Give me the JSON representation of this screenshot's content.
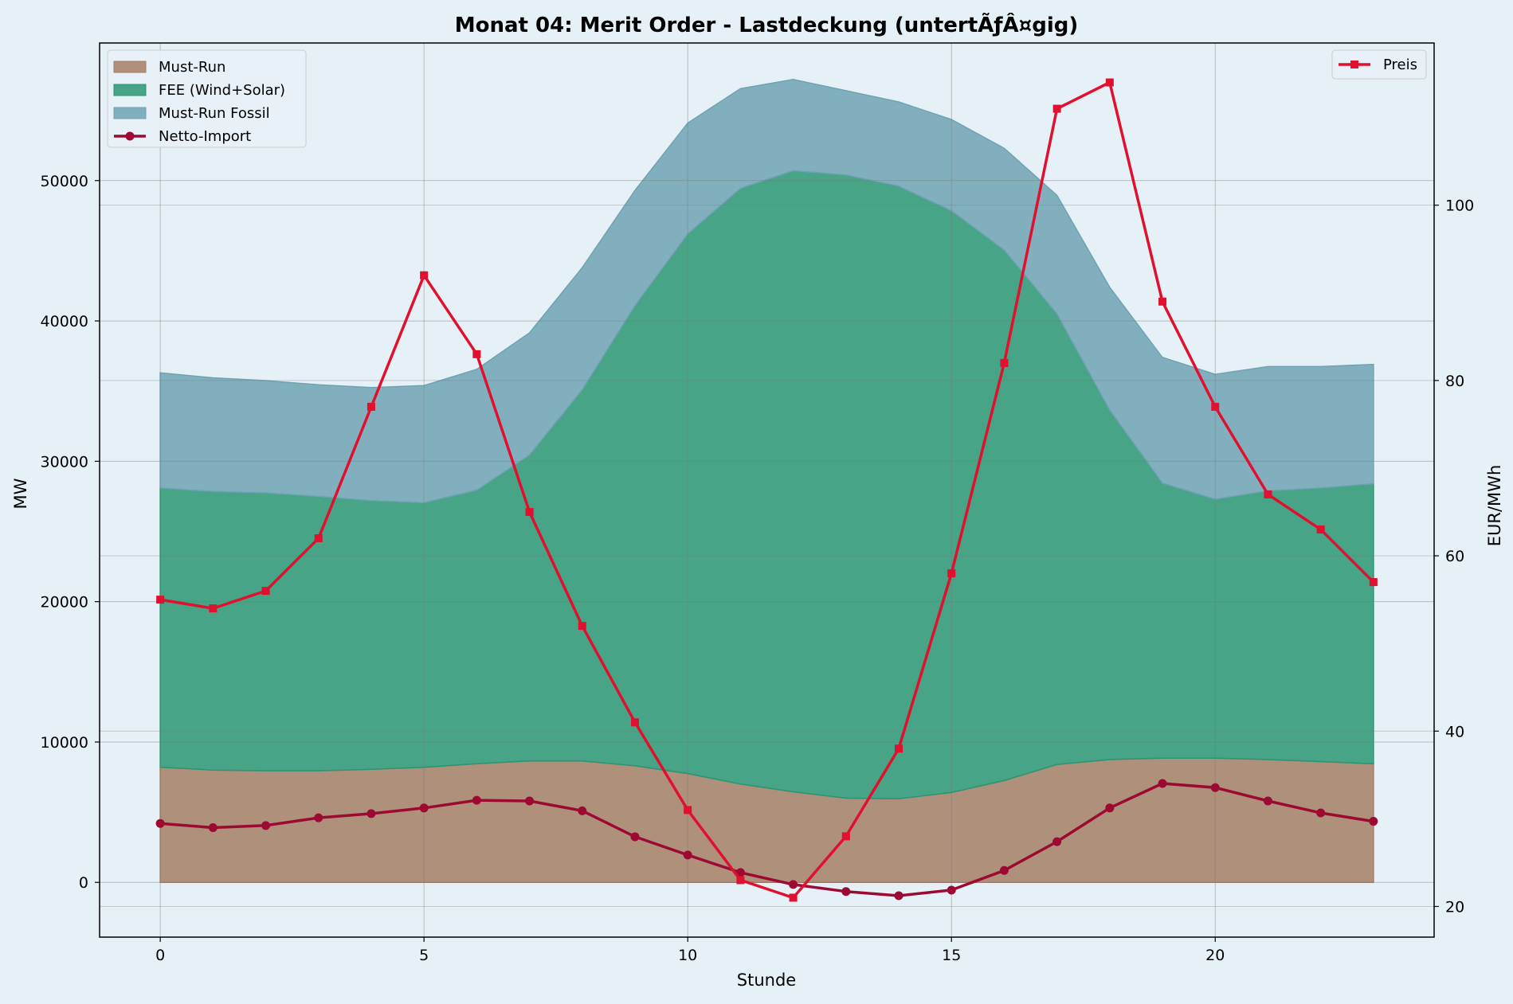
{
  "chart_data": {
    "type": "area",
    "title": "Monat 04: Merit Order - Lastdeckung (untertÃƒÂ¤gig)",
    "xlabel": "Stunde",
    "ylabel": "MW",
    "y2label": "EUR/MWh",
    "xlim": [
      -1.15,
      24.15
    ],
    "ylim": [
      -3900,
      59800
    ],
    "y2lim": [
      16.5,
      118.5
    ],
    "x_ticks": [
      0,
      5,
      10,
      15,
      20
    ],
    "y_ticks": [
      0,
      10000,
      20000,
      30000,
      40000,
      50000
    ],
    "y2_ticks": [
      20,
      40,
      60,
      80,
      100
    ],
    "grid": true,
    "x": [
      0,
      1,
      2,
      3,
      4,
      5,
      6,
      7,
      8,
      9,
      10,
      11,
      12,
      13,
      14,
      15,
      16,
      17,
      18,
      19,
      20,
      21,
      22,
      23
    ],
    "stack_series": [
      {
        "name": "Must-Run",
        "color": "#a57f65",
        "values": [
          8200,
          8000,
          7950,
          7950,
          8050,
          8200,
          8450,
          8650,
          8650,
          8300,
          7750,
          7000,
          6450,
          6000,
          5950,
          6400,
          7250,
          8400,
          8750,
          8850,
          8850,
          8750,
          8600,
          8450
        ]
      },
      {
        "name": "FEE (Wind+Solar)",
        "color": "#2a9673",
        "values": [
          19900,
          19850,
          19800,
          19550,
          19150,
          18850,
          19500,
          21800,
          26450,
          32800,
          38450,
          42450,
          44250,
          44400,
          43650,
          41450,
          37800,
          32100,
          24900,
          19600,
          18450,
          19150,
          19500,
          19950
        ]
      },
      {
        "name": "Must-Run Fossil",
        "color": "#6fa3b3",
        "values": [
          8200,
          8100,
          8000,
          7950,
          8050,
          8350,
          8600,
          8700,
          8700,
          8200,
          7900,
          7100,
          6500,
          6000,
          6000,
          6500,
          7250,
          8450,
          8750,
          8950,
          8900,
          8850,
          8650,
          8500
        ]
      }
    ],
    "lines": [
      {
        "name": "Netto-Import",
        "color": "#9c0a32",
        "axis": "left",
        "marker": "circle",
        "values": [
          4200,
          3900,
          4050,
          4600,
          4900,
          5300,
          5850,
          5800,
          5100,
          3250,
          1950,
          700,
          -150,
          -650,
          -950,
          -550,
          850,
          2900,
          5300,
          7050,
          6750,
          5800,
          4950,
          4350
        ]
      },
      {
        "name": "Preis",
        "color": "#e0102e",
        "axis": "right",
        "marker": "square",
        "values": [
          55,
          54,
          56,
          62,
          77,
          92,
          83,
          65,
          52,
          41,
          31,
          23,
          21,
          28,
          38,
          58,
          82,
          111,
          114,
          89,
          77,
          67,
          63,
          57
        ]
      }
    ],
    "legend_left": {
      "position": "upper left"
    },
    "legend_right": {
      "position": "upper right"
    }
  }
}
